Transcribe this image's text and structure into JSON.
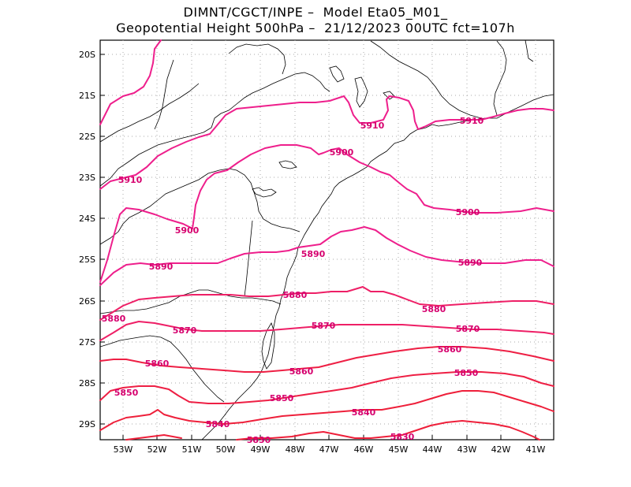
{
  "header": {
    "line1": "DIMNT/CGCT/INPE –  Model Eta05_M01_",
    "line2": "Geopotential Height 500hPa –  21/12/2023 00UTC fct=107h"
  },
  "axes": {
    "lat_ticks": [
      "20S",
      "21S",
      "22S",
      "23S",
      "24S",
      "25S",
      "26S",
      "27S",
      "28S",
      "29S"
    ],
    "lon_ticks": [
      "53W",
      "52W",
      "51W",
      "50W",
      "49W",
      "48W",
      "47W",
      "46W",
      "45W",
      "44W",
      "43W",
      "42W",
      "41W"
    ]
  },
  "contour_labels": [
    {
      "text": "5910"
    },
    {
      "text": "5910"
    },
    {
      "text": "5910"
    },
    {
      "text": "5900"
    },
    {
      "text": "5900"
    },
    {
      "text": "5900"
    },
    {
      "text": "5890"
    },
    {
      "text": "5890"
    },
    {
      "text": "5890"
    },
    {
      "text": "5880"
    },
    {
      "text": "5880"
    },
    {
      "text": "5880"
    },
    {
      "text": "5870"
    },
    {
      "text": "5870"
    },
    {
      "text": "5870"
    },
    {
      "text": "5860"
    },
    {
      "text": "5860"
    },
    {
      "text": "5860"
    },
    {
      "text": "5850"
    },
    {
      "text": "5850"
    },
    {
      "text": "5850"
    },
    {
      "text": "5840"
    },
    {
      "text": "5840"
    },
    {
      "text": "5830"
    },
    {
      "text": "5830"
    }
  ],
  "colors": {
    "contour_high": "#ee1f8c",
    "contour_low": "#ee1f3a",
    "label": "#d6006e",
    "coastline": "#000000",
    "grid": "#999999"
  }
}
